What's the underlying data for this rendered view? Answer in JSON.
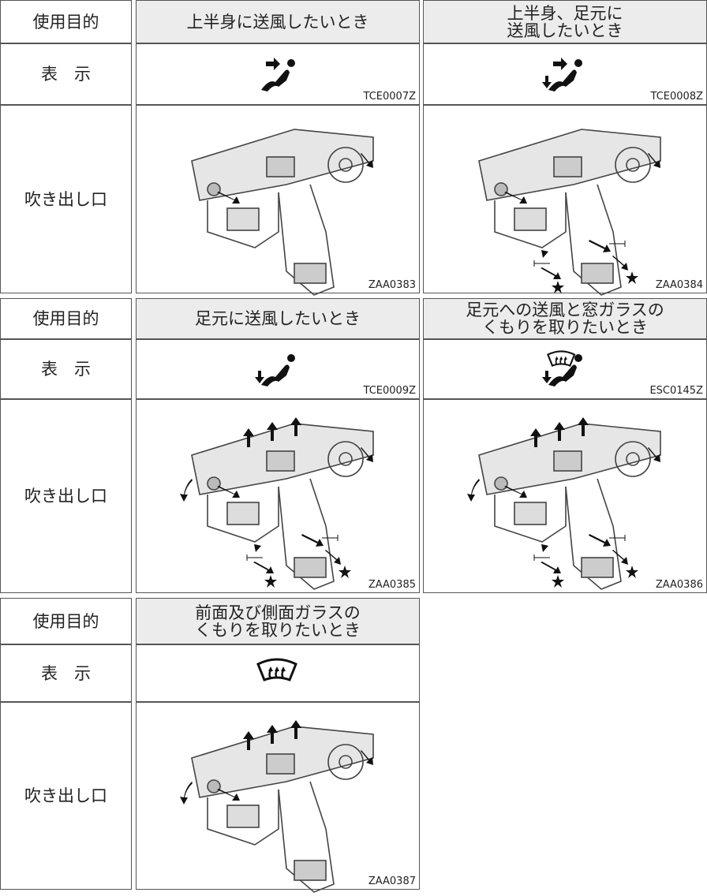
{
  "row_labels": [
    "使用目的",
    "表　示",
    "吹き出し口"
  ],
  "tables": [
    {
      "columns": [
        {
          "purpose": "上半身に送風したいとき",
          "icon_code": "TCE0007Z",
          "figure_code": "ZAA0383"
        },
        {
          "purpose": "上半身、足元に\n送風したいとき",
          "icon_code": "TCE0008Z",
          "figure_code": "ZAA0384"
        }
      ]
    },
    {
      "columns": [
        {
          "purpose": "足元に送風したいとき",
          "icon_code": "TCE0009Z",
          "figure_code": "ZAA0385"
        },
        {
          "purpose": "足元への送風と窓ガラスの\nくもりを取りたいとき",
          "icon_code": "ESC0145Z",
          "figure_code": "ZAA0386"
        }
      ]
    },
    {
      "columns": [
        {
          "purpose": "前面及び側面ガラスの\nくもりを取りたいとき",
          "icon_code": null,
          "figure_code": "ZAA0387"
        }
      ]
    }
  ]
}
